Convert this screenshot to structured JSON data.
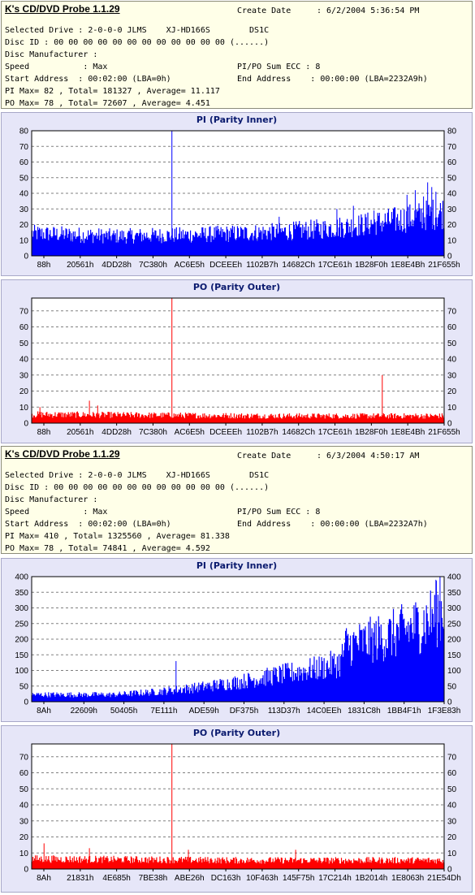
{
  "runs": [
    {
      "app_title": "K's CD/DVD Probe 1.1.29",
      "create_date_label": "Create Date",
      "create_date": ": 6/2/2004 5:36:54 PM",
      "lines": [
        {
          "l": "Selected Drive : 2-0-0-0 JLMS    XJ-HD166S        DS1C",
          "r": ""
        },
        {
          "l": "Disc ID : 00 00 00 00 00 00 00 00 00 00 00 00 (......)",
          "r": ""
        },
        {
          "l": "Disc Manufacturer :",
          "r": ""
        },
        {
          "l": "Speed           : Max",
          "r": "PI/PO Sum ECC : 8"
        },
        {
          "l": "Start Address  : 00:02:00 (LBA=0h)",
          "r": "End Address    : 00:00:00 (LBA=2232A9h)"
        },
        {
          "l": "PI Max= 82 , Total= 181327 , Average= 11.117",
          "r": ""
        },
        {
          "l": "PO Max= 78 , Total= 72607 , Average= 4.451",
          "r": ""
        }
      ]
    },
    {
      "app_title": "K's CD/DVD Probe 1.1.29",
      "create_date_label": "Create Date",
      "create_date": ": 6/3/2004 4:50:17 AM",
      "lines": [
        {
          "l": "Selected Drive : 2-0-0-0 JLMS    XJ-HD166S        DS1C",
          "r": ""
        },
        {
          "l": "Disc ID : 00 00 00 00 00 00 00 00 00 00 00 00 (......)",
          "r": ""
        },
        {
          "l": "Disc Manufacturer :",
          "r": ""
        },
        {
          "l": "Speed           : Max",
          "r": "PI/PO Sum ECC : 8"
        },
        {
          "l": "Start Address  : 00:02:00 (LBA=0h)",
          "r": "End Address    : 00:00:00 (LBA=2232A7h)"
        },
        {
          "l": "PI Max= 410 , Total= 1325560 , Average= 81.338",
          "r": ""
        },
        {
          "l": "PO Max= 78 , Total= 74841 , Average= 4.592",
          "r": ""
        }
      ]
    }
  ],
  "chart_data": [
    {
      "type": "bar",
      "title": "PI (Parity Inner)",
      "color": "#0000ff",
      "ylim": [
        0,
        80
      ],
      "yticks": [
        0,
        10,
        20,
        30,
        40,
        50,
        60,
        70,
        80
      ],
      "xticks": [
        "88h",
        "20561h",
        "4DD28h",
        "7C380h",
        "AC6E5h",
        "DCEEEh",
        "1102B7h",
        "14682Ch",
        "17CE61h",
        "1B28F0h",
        "1E8E4Bh",
        "21F655h"
      ],
      "baseline": [
        [
          0,
          16
        ],
        [
          20,
          14
        ],
        [
          40,
          15
        ],
        [
          60,
          17
        ],
        [
          70,
          19
        ],
        [
          80,
          22
        ],
        [
          90,
          26
        ],
        [
          100,
          31
        ]
      ],
      "spikes": [
        [
          34,
          82
        ],
        [
          60,
          25
        ],
        [
          74,
          30
        ],
        [
          78,
          32
        ],
        [
          83,
          29
        ],
        [
          88,
          31
        ],
        [
          91,
          39
        ],
        [
          93,
          42
        ],
        [
          95,
          38
        ],
        [
          96,
          47
        ],
        [
          97,
          44
        ],
        [
          98,
          41
        ]
      ],
      "grid": true
    },
    {
      "type": "bar",
      "title": "PO (Parity Outer)",
      "color": "#ff0000",
      "ylim": [
        0,
        78
      ],
      "yticks": [
        0,
        10,
        20,
        30,
        40,
        50,
        60,
        70
      ],
      "xticks": [
        "88h",
        "20561h",
        "4DD28h",
        "7C380h",
        "AC6E5h",
        "DCEEEh",
        "1102B7h",
        "14682Ch",
        "17CE61h",
        "1B28F0h",
        "1E8E4Bh",
        "21F655h"
      ],
      "baseline": [
        [
          0,
          6
        ],
        [
          30,
          5.5
        ],
        [
          60,
          5
        ],
        [
          100,
          5
        ]
      ],
      "spikes": [
        [
          2,
          10
        ],
        [
          14,
          14
        ],
        [
          16,
          11
        ],
        [
          34,
          78
        ],
        [
          85,
          30
        ]
      ],
      "grid": true
    },
    {
      "type": "bar",
      "title": "PI (Parity Inner)",
      "color": "#0000ff",
      "ylim": [
        0,
        400
      ],
      "yticks": [
        0,
        50,
        100,
        150,
        200,
        250,
        300,
        350,
        400
      ],
      "xticks": [
        "8Ah",
        "22609h",
        "50405h",
        "7E111h",
        "ADE59h",
        "DF375h",
        "113D37h",
        "14C0EEh",
        "1831C8h",
        "1BB4F1h",
        "1F3E83h"
      ],
      "baseline": [
        [
          0,
          25
        ],
        [
          20,
          25
        ],
        [
          30,
          35
        ],
        [
          40,
          50
        ],
        [
          50,
          70
        ],
        [
          60,
          95
        ],
        [
          70,
          120
        ],
        [
          75,
          140
        ],
        [
          76,
          200
        ],
        [
          80,
          210
        ],
        [
          88,
          240
        ],
        [
          95,
          280
        ],
        [
          100,
          330
        ]
      ],
      "spikes": [
        [
          35,
          130
        ],
        [
          98,
          390
        ],
        [
          99,
          410
        ]
      ],
      "grid": true
    },
    {
      "type": "bar",
      "title": "PO (Parity Outer)",
      "color": "#ff0000",
      "ylim": [
        0,
        78
      ],
      "yticks": [
        0,
        10,
        20,
        30,
        40,
        50,
        60,
        70
      ],
      "xticks": [
        "8Ah",
        "21831h",
        "4E685h",
        "7BE38h",
        "ABE26h",
        "DC163h",
        "10F463h",
        "145F75h",
        "17C214h",
        "1B2014h",
        "1E8063h",
        "21E54Dh"
      ],
      "baseline": [
        [
          0,
          7
        ],
        [
          50,
          6
        ],
        [
          100,
          6
        ]
      ],
      "spikes": [
        [
          3,
          16
        ],
        [
          14,
          13
        ],
        [
          34,
          78
        ],
        [
          38,
          12
        ],
        [
          64,
          12
        ]
      ],
      "grid": true
    }
  ]
}
